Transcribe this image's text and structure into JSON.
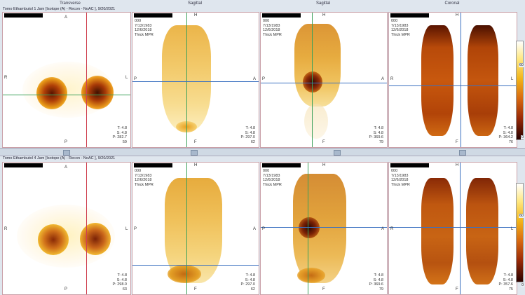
{
  "headers": {
    "transverse": "Transverse",
    "sagittal1": "Sagittal",
    "sagittal2": "Sagittal",
    "coronal": "Coronal"
  },
  "orient": {
    "A": "A",
    "P": "P",
    "R": "R",
    "L": "L",
    "H": "H",
    "F": "F"
  },
  "colorbar": {
    "max_label": "60",
    "min_label": "0"
  },
  "rows": [
    {
      "title": "Tomo Ethambutol 1 Jam [Isotope (A) - Recon - NoAC ], 9/20/2021",
      "viewports": [
        {
          "id": "000",
          "dob": "7/13/1983",
          "date": "12/6/2018",
          "mode": "Thick MPR",
          "t": "T: 4.8",
          "s": "S: 4.8",
          "p": "P: 282.7",
          "slice": "59"
        },
        {
          "id": "000",
          "dob": "7/13/1983",
          "date": "12/6/2018",
          "mode": "Thick MPR",
          "t": "T: 4.8",
          "s": "S: 4.8",
          "p": "P: 297.0",
          "slice": "62"
        },
        {
          "id": "000",
          "dob": "7/13/1983",
          "date": "12/6/2018",
          "mode": "Thick MPR",
          "t": "T: 4.8",
          "s": "S: 4.8",
          "p": "P: 369.6",
          "slice": "79"
        },
        {
          "id": "000",
          "dob": "7/13/1983",
          "date": "12/6/2018",
          "mode": "Thick MPR",
          "t": "T: 4.8",
          "s": "S: 4.8",
          "p": "P: 364.2",
          "slice": "76"
        }
      ]
    },
    {
      "title": "Tomo Ethambutol 4 Jam [Isotope (A) - Recon - NoAC ], 9/20/2021",
      "viewports": [
        {
          "id": "000",
          "dob": "7/13/1983",
          "date": "12/6/2018",
          "mode": "Thick MPR",
          "t": "T: 4.8",
          "s": "S: 4.8",
          "p": "P: 298.0",
          "slice": "63"
        },
        {
          "id": "000",
          "dob": "7/13/1983",
          "date": "12/6/2018",
          "mode": "Thick MPR",
          "t": "T: 4.8",
          "s": "S: 4.8",
          "p": "P: 297.0",
          "slice": "62"
        },
        {
          "id": "000",
          "dob": "7/13/1983",
          "date": "12/6/2018",
          "mode": "Thick MPR",
          "t": "T: 4.8",
          "s": "S: 4.8",
          "p": "P: 369.6",
          "slice": "79"
        },
        {
          "id": "000",
          "dob": "7/13/1983",
          "date": "12/6/2018",
          "mode": "Thick MPR",
          "t": "T: 4.8",
          "s": "S: 4.8",
          "p": "P: 357.6",
          "slice": "75"
        }
      ]
    }
  ]
}
